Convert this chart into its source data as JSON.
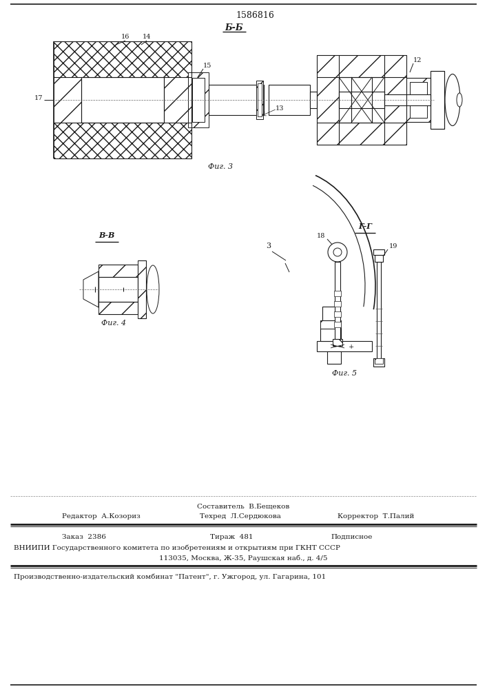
{
  "patent_number": "1586816",
  "fig3_label": "Б-Б",
  "fig4_label": "В-В",
  "fig5_label": "Г-Г",
  "fig3_caption": "Фиг. 3",
  "fig4_caption": "Фиг. 4",
  "fig5_caption": "Фиг. 5",
  "line1": "Составитель  В.Бещеков",
  "line2_left": "Редактор  А.Козориз",
  "line2_mid": "Техред  Л.Сердюкова",
  "line2_right": "Корректор  Т.Палий",
  "line3_left": "Заказ  2386",
  "line3_mid": "Тираж  481",
  "line3_right": "Подписное",
  "line4": "ВНИИПИ Государственного комитета по изобретениям и открытиям при ГКНТ СССР",
  "line5": "113035, Москва, Ж-35, Раушская наб., д. 4/5",
  "line6": "Производственно-издательский комбинат \"Патент\", г. Ужгород, ул. Гагарина, 101",
  "bg_color": "#ffffff",
  "line_color": "#1a1a1a"
}
